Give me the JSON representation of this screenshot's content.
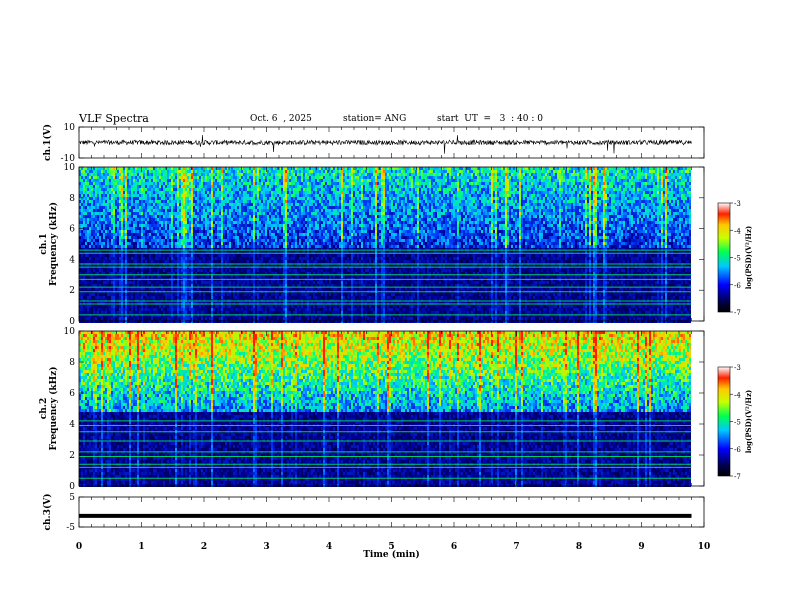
{
  "header": {
    "title": "VLF Spectra",
    "date": "Oct. 6  , 2025",
    "station": "station= ANG",
    "start_ut": "start  UT  =   3  : 40 : 0"
  },
  "colors": {
    "trace": "#000000",
    "spectrogram_low": "#00003c",
    "spectrogram_high": "#ff0000"
  },
  "chart_data": [
    {
      "type": "line",
      "name": "ch1-waveform",
      "ylabel": "ch.1(V)",
      "ylim": [
        -10,
        10
      ],
      "ytick_labels": [
        "10",
        "-10"
      ],
      "xlim": [
        0,
        10
      ],
      "data_extent_min": [
        0,
        9.8
      ],
      "baseline_v": 0,
      "noise_amplitude_v": 1.5
    },
    {
      "type": "heatmap",
      "name": "ch1-spectrogram",
      "ylabel_line1": "ch.1",
      "ylabel_line2": "Frequency  (kHz)",
      "ylim": [
        0,
        10
      ],
      "ytick_labels": [
        "0",
        "2",
        "4",
        "6",
        "8",
        "10"
      ],
      "xlim": [
        0,
        10
      ],
      "colorbar": {
        "label": "log(PSD)(V²/Hz)",
        "range": [
          -7,
          -3
        ],
        "tick_labels": [
          "-3",
          "-4",
          "-5",
          "-6",
          "-7"
        ]
      },
      "intensity_level": 0.55,
      "persistent_tones_khz": [
        0.4,
        1.1,
        1.3,
        1.9,
        2.2,
        2.7,
        3.0,
        3.5,
        3.7,
        4.4,
        4.6
      ]
    },
    {
      "type": "heatmap",
      "name": "ch2-spectrogram",
      "ylabel_line1": "ch.2",
      "ylabel_line2": "Frequency  (kHz)",
      "ylim": [
        0,
        10
      ],
      "ytick_labels": [
        "0",
        "2",
        "4",
        "6",
        "8",
        "10"
      ],
      "xlim": [
        0,
        10
      ],
      "colorbar": {
        "label": "log(PSD)(V²/Hz)",
        "range": [
          -7,
          -3
        ],
        "tick_labels": [
          "-3",
          "-4",
          "-5",
          "-6",
          "-7"
        ]
      },
      "intensity_level": 0.85,
      "persistent_tones_khz": [
        0.5,
        1.2,
        1.4,
        1.9,
        2.2,
        2.9,
        3.5,
        3.9,
        4.2
      ]
    },
    {
      "type": "line",
      "name": "ch3-waveform",
      "ylabel": "ch.3(V)",
      "ylim": [
        -5,
        5
      ],
      "ytick_labels": [
        "5",
        "-5"
      ],
      "xlim": [
        0,
        10
      ],
      "data_extent_min": [
        0,
        9.8
      ],
      "baseline_v": -1.3
    }
  ],
  "x_axis": {
    "label": "Time  (min)",
    "tick_labels": [
      "0",
      "1",
      "2",
      "3",
      "4",
      "5",
      "6",
      "7",
      "8",
      "9",
      "10"
    ]
  }
}
